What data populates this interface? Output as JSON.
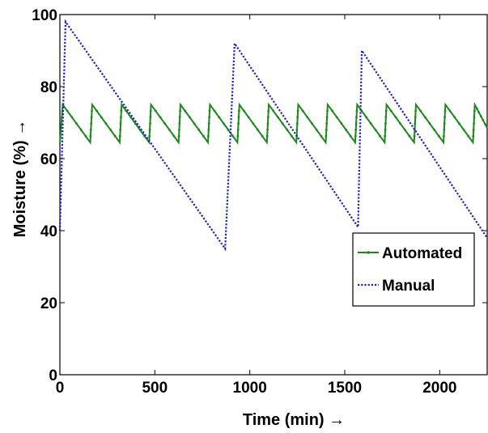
{
  "chart_data": {
    "type": "line",
    "title": "",
    "xlabel": "Time (min) →",
    "ylabel": "Moisture (%) →",
    "xlim": [
      0,
      2250
    ],
    "ylim": [
      0,
      100
    ],
    "xticks": [
      0,
      500,
      1000,
      1500,
      2000
    ],
    "yticks": [
      0,
      20,
      40,
      60,
      80,
      100
    ],
    "grid": false,
    "legend_position": "center-right",
    "series": [
      {
        "name": "Automated",
        "color": "#1a8a1a",
        "style": "solid-dot-markers",
        "x": [
          0,
          15,
          160,
          170,
          315,
          325,
          470,
          480,
          625,
          635,
          780,
          790,
          935,
          945,
          1090,
          1100,
          1245,
          1255,
          1400,
          1410,
          1555,
          1565,
          1710,
          1720,
          1865,
          1875,
          2020,
          2030,
          2175,
          2185,
          2250
        ],
        "y": [
          64,
          75,
          64.5,
          75,
          64.5,
          75,
          64.5,
          75,
          64.5,
          75,
          64.5,
          75,
          64.5,
          75,
          64.5,
          75,
          64.5,
          75,
          64.5,
          75,
          64.5,
          75,
          64.5,
          75,
          64.5,
          75,
          64.5,
          75,
          64.5,
          75,
          68.5
        ]
      },
      {
        "name": "Manual",
        "color": "#1f1fd6",
        "style": "dotted",
        "x": [
          0,
          30,
          870,
          920,
          1570,
          1590,
          2250
        ],
        "y": [
          40,
          98,
          35,
          92,
          41,
          90,
          38
        ]
      }
    ]
  }
}
